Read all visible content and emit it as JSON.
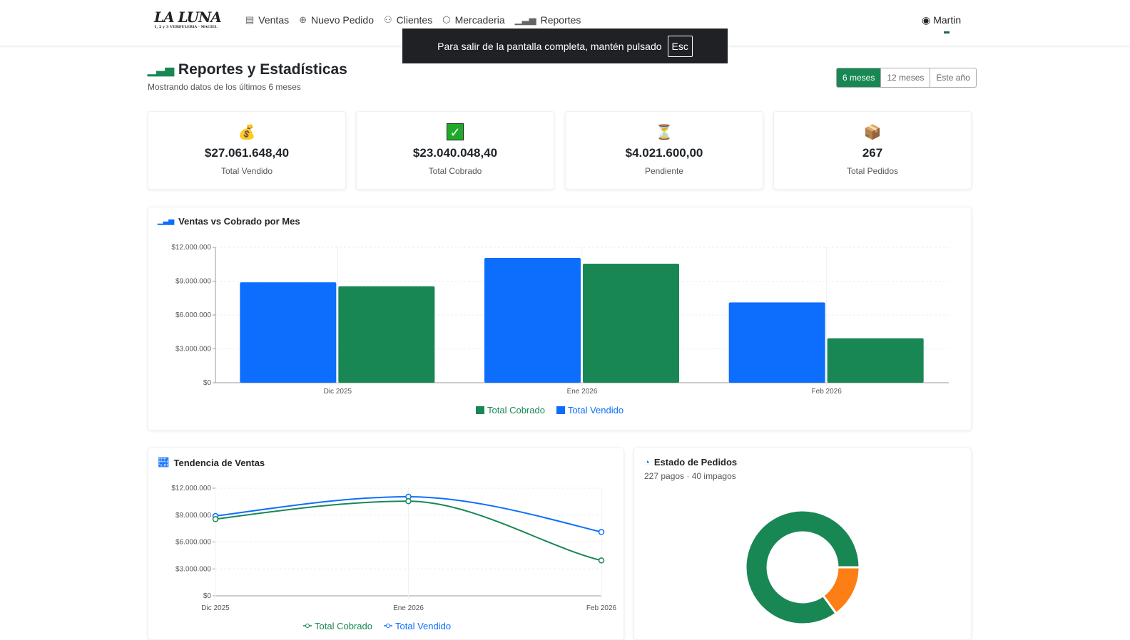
{
  "nav": {
    "logo": "LA LUNA",
    "logo_sub": "1, 2 y 3  VERDULERIA · MACIEL",
    "items": [
      {
        "label": "Ventas",
        "icon": "list-icon"
      },
      {
        "label": "Nuevo Pedido",
        "icon": "plus-circle-icon"
      },
      {
        "label": "Clientes",
        "icon": "people-icon"
      },
      {
        "label": "Mercaderia",
        "icon": "box-icon"
      },
      {
        "label": "Reportes",
        "icon": "bar-chart-icon"
      }
    ],
    "user": "Martin"
  },
  "toast": {
    "text": "Para salir de la pantalla completa, mantén pulsado",
    "key": "Esc"
  },
  "header": {
    "title": "Reportes y Estadísticas",
    "subtitle": "Mostrando datos de los últimos 6 meses",
    "ranges": [
      "6 meses",
      "12 meses",
      "Este año"
    ],
    "active_range": "6 meses"
  },
  "stats": [
    {
      "value": "$27.061.648,40",
      "label": "Total Vendido",
      "icon": "money-bag-icon"
    },
    {
      "value": "$23.040.048,40",
      "label": "Total Cobrado",
      "icon": "check-icon"
    },
    {
      "value": "$4.021.600,00",
      "label": "Pendiente",
      "icon": "hourglass-icon"
    },
    {
      "value": "267",
      "label": "Total Pedidos",
      "icon": "package-icon"
    }
  ],
  "colors": {
    "cobrado": "#198754",
    "vendido": "#0d6efd",
    "impagos": "#fd7e14"
  },
  "chart_data": [
    {
      "type": "bar",
      "title": "Ventas vs Cobrado por Mes",
      "categories": [
        "Dic 2025",
        "Ene 2026",
        "Feb 2026"
      ],
      "ylim": [
        0,
        12000000
      ],
      "yticks": [
        "$0",
        "$3.000.000",
        "$6.000.000",
        "$9.000.000",
        "$12.000.000"
      ],
      "legend": "bottom",
      "grid": true,
      "series": [
        {
          "name": "Total Vendido",
          "values": [
            8900000,
            11050000,
            7110000
          ]
        },
        {
          "name": "Total Cobrado",
          "values": [
            8550000,
            10550000,
            3940000
          ]
        }
      ],
      "legend_order": [
        "Total Cobrado",
        "Total Vendido"
      ]
    },
    {
      "type": "line",
      "title": "Tendencia de Ventas",
      "categories": [
        "Dic 2025",
        "Ene 2026",
        "Feb 2026"
      ],
      "ylim": [
        0,
        12000000
      ],
      "yticks": [
        "$0",
        "$3.000.000",
        "$6.000.000",
        "$9.000.000",
        "$12.000.000"
      ],
      "legend": "bottom",
      "grid": true,
      "series": [
        {
          "name": "Total Vendido",
          "values": [
            8900000,
            11050000,
            7110000
          ]
        },
        {
          "name": "Total Cobrado",
          "values": [
            8550000,
            10550000,
            3940000
          ]
        }
      ],
      "legend_order": [
        "Total Cobrado",
        "Total Vendido"
      ]
    },
    {
      "type": "pie",
      "title": "Estado de Pedidos",
      "subtitle": "227 pagos · 40 impagos",
      "values": [
        {
          "label": "Pagos",
          "value": 227
        },
        {
          "label": "Impagos",
          "value": 40
        }
      ]
    }
  ]
}
